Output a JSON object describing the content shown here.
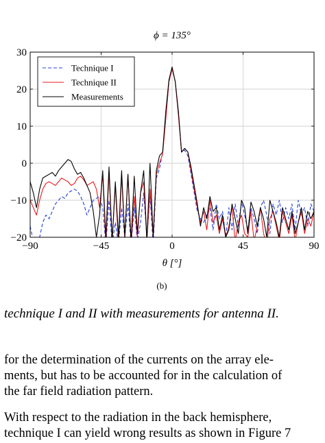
{
  "chart_data": {
    "type": "line",
    "title": "ϕ = 135°",
    "xlabel": "θ [°]",
    "ylabel": "",
    "xlim": [
      -90,
      90
    ],
    "ylim": [
      -20,
      30
    ],
    "xticks": [
      -90,
      -45,
      0,
      45,
      90
    ],
    "xtick_labels": [
      "−90",
      "−45",
      "0",
      "45",
      "90"
    ],
    "yticks": [
      -20,
      -10,
      0,
      10,
      20,
      30
    ],
    "ytick_labels": [
      "−20",
      "−10",
      "0",
      "10",
      "20",
      "30"
    ],
    "grid": true,
    "legend_position": "top-left",
    "panel_label": "(b)",
    "series": [
      {
        "name": "Technique I",
        "color": "#1f3fdc",
        "dash": "dashed",
        "x": [
          -90,
          -88,
          -86,
          -84,
          -82,
          -80,
          -78,
          -76,
          -74,
          -72,
          -70,
          -68,
          -66,
          -64,
          -62,
          -60,
          -58,
          -56,
          -54,
          -52,
          -50,
          -48,
          -46,
          -44,
          -42,
          -40,
          -38,
          -36,
          -34,
          -32,
          -30,
          -28,
          -26,
          -24,
          -22,
          -20,
          -18,
          -16,
          -14,
          -12,
          -10,
          -8,
          -6,
          -4,
          -2,
          0,
          2,
          4,
          6,
          8,
          10,
          12,
          14,
          16,
          18,
          20,
          22,
          24,
          26,
          28,
          30,
          32,
          34,
          36,
          38,
          40,
          42,
          44,
          46,
          48,
          50,
          52,
          54,
          56,
          58,
          60,
          62,
          64,
          66,
          68,
          70,
          72,
          74,
          76,
          78,
          80,
          82,
          84,
          86,
          88,
          90
        ],
        "values": [
          -17,
          -21,
          -22,
          -20,
          -16,
          -14,
          -15,
          -13,
          -11,
          -10,
          -9,
          -9.5,
          -8,
          -7.5,
          -7,
          -7.5,
          -9,
          -11,
          -14,
          -12,
          -10,
          -9.5,
          -9,
          -12,
          -22,
          -10,
          -22,
          -16,
          -22,
          -12,
          -20,
          -11,
          -22,
          -12,
          -21,
          -16,
          -8,
          -20,
          -9,
          -22,
          -4,
          -1.5,
          3,
          12,
          22,
          25.5,
          22,
          13,
          3,
          3.5,
          2,
          -3,
          -8,
          -13,
          -15,
          -16,
          -14,
          -12,
          -18,
          -11,
          -15,
          -13,
          -20,
          -12,
          -18,
          -11,
          -17,
          -10.5,
          -14,
          -18,
          -12,
          -15,
          -19,
          -12,
          -10,
          -14,
          -19,
          -11,
          -14,
          -10,
          -16,
          -12,
          -15,
          -11,
          -18,
          -10,
          -14,
          -12,
          -17,
          -11,
          -13
        ]
      },
      {
        "name": "Technique II",
        "color": "#e8191e",
        "dash": "solid",
        "x": [
          -90,
          -88,
          -86,
          -84,
          -82,
          -80,
          -78,
          -76,
          -74,
          -72,
          -70,
          -68,
          -66,
          -64,
          -62,
          -60,
          -58,
          -56,
          -54,
          -52,
          -50,
          -48,
          -46,
          -44,
          -42,
          -40,
          -38,
          -36,
          -34,
          -32,
          -30,
          -28,
          -26,
          -24,
          -22,
          -20,
          -18,
          -16,
          -14,
          -12,
          -10,
          -8,
          -6,
          -4,
          -2,
          0,
          2,
          4,
          6,
          8,
          10,
          12,
          14,
          16,
          18,
          20,
          22,
          24,
          26,
          28,
          30,
          32,
          34,
          36,
          38,
          40,
          42,
          44,
          46,
          48,
          50,
          52,
          54,
          56,
          58,
          60,
          62,
          64,
          66,
          68,
          70,
          72,
          74,
          76,
          78,
          80,
          82,
          84,
          86,
          88,
          90
        ],
        "values": [
          -10,
          -12,
          -14,
          -10,
          -7,
          -5.5,
          -5,
          -5.5,
          -6,
          -5,
          -4,
          -4.5,
          -5,
          -6,
          -5.5,
          -4,
          -3.5,
          -4.5,
          -6,
          -5.5,
          -5,
          -7,
          -12,
          -3,
          -22,
          -2.5,
          -21,
          -6,
          -22,
          -3.5,
          -20,
          -3,
          -22,
          -9,
          -20,
          -8,
          -5,
          -21,
          -7,
          -20,
          -3,
          0,
          2.5,
          12,
          22,
          25.5,
          22,
          13,
          3,
          4,
          3,
          -2,
          -7,
          -12,
          -16,
          -13,
          -18,
          -10,
          -16,
          -14,
          -19,
          -15,
          -20,
          -17,
          -12,
          -21,
          -16,
          -14,
          -19,
          -20,
          -13,
          -21,
          -17,
          -12,
          -19,
          -22,
          -15,
          -13,
          -17,
          -21,
          -13,
          -16,
          -19,
          -14,
          -21,
          -16,
          -13,
          -19,
          -15,
          -17,
          -13
        ]
      },
      {
        "name": "Measurements",
        "color": "#000000",
        "dash": "solid",
        "x": [
          -90,
          -88,
          -86,
          -84,
          -82,
          -80,
          -78,
          -76,
          -74,
          -72,
          -70,
          -68,
          -66,
          -64,
          -62,
          -60,
          -58,
          -56,
          -54,
          -52,
          -50,
          -48,
          -46,
          -44,
          -42,
          -40,
          -38,
          -36,
          -34,
          -32,
          -30,
          -28,
          -26,
          -24,
          -22,
          -20,
          -18,
          -16,
          -14,
          -12,
          -10,
          -8,
          -6,
          -4,
          -2,
          0,
          2,
          4,
          6,
          8,
          10,
          12,
          14,
          16,
          18,
          20,
          22,
          24,
          26,
          28,
          30,
          32,
          34,
          36,
          38,
          40,
          42,
          44,
          46,
          48,
          50,
          52,
          54,
          56,
          58,
          60,
          62,
          64,
          66,
          68,
          70,
          72,
          74,
          76,
          78,
          80,
          82,
          84,
          86,
          88,
          90
        ],
        "values": [
          -5,
          -8,
          -12,
          -7,
          -4,
          -3.5,
          -3,
          -2.5,
          -3.5,
          -2,
          -1,
          0,
          1,
          0.5,
          -1.5,
          -3,
          -2.5,
          -4,
          -6,
          -8,
          -13,
          -20,
          -14,
          -2,
          -20,
          -1,
          -21,
          -5,
          -20,
          -2,
          -20,
          -3,
          -21,
          -3.5,
          -19,
          -8,
          -2,
          -21,
          0,
          -20,
          -2,
          2,
          3,
          14,
          22.5,
          26,
          22,
          14,
          3,
          4,
          3,
          -1,
          -6,
          -11,
          -17,
          -12,
          -15,
          -9,
          -13,
          -12,
          -18,
          -14,
          -20,
          -18,
          -11,
          -15,
          -19,
          -10,
          -12,
          -19,
          -10.5,
          -13,
          -17,
          -12,
          -15,
          -20,
          -10,
          -13,
          -16,
          -20,
          -12,
          -15,
          -18,
          -13,
          -19,
          -16,
          -12,
          -18,
          -13,
          -15,
          -13
        ]
      }
    ]
  },
  "caption": "technique I and II with measurements for antenna II.",
  "paragraphs": [
    {
      "line1": "for the determination of the currents on the array ele-",
      "line2": "ments, but has to be accounted for in the calculation of",
      "line3": "the far field radiation pattern."
    },
    {
      "line1": "With respect to the radiation in the back hemisphere,",
      "line2": "technique I can yield wrong results as shown in Figure 7"
    }
  ]
}
